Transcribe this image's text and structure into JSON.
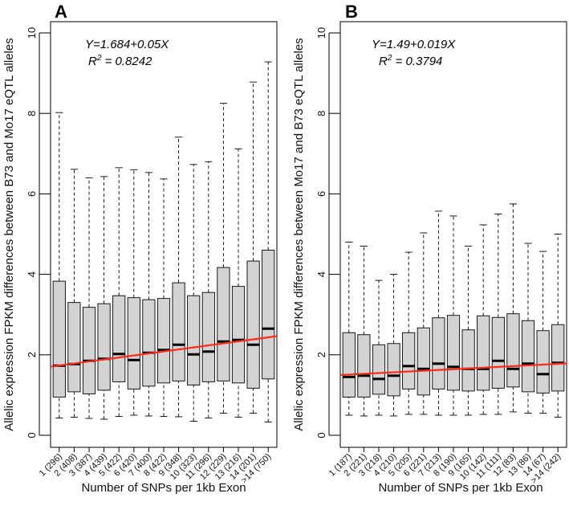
{
  "chart_data": [
    {
      "type": "boxplot",
      "panel_label": "A",
      "ylabel": "Allelic expression FPKM differences between B73 and Mo17 eQTL alleles",
      "xlabel": "Number of SNPs per 1kb Exon",
      "ylim": [
        0,
        10
      ],
      "yticks": [
        "0",
        "2",
        "4",
        "6",
        "8",
        "10"
      ],
      "categories": [
        "1 (296)",
        "2 (408)",
        "3 (387)",
        "4 (439)",
        "5 (422)",
        "6 (420)",
        "7 (400)",
        "8 (422)",
        "9 (348)",
        "10 (323)",
        "11 (296)",
        "12 (229)",
        "13 (216)",
        "14 (201)",
        ">14 (750)"
      ],
      "boxes": [
        {
          "min": 0.43,
          "q1": 0.95,
          "median": 1.73,
          "q3": 3.83,
          "max": 8.02
        },
        {
          "min": 0.45,
          "q1": 1.08,
          "median": 1.77,
          "q3": 3.3,
          "max": 6.61
        },
        {
          "min": 0.42,
          "q1": 1.03,
          "median": 1.85,
          "q3": 3.18,
          "max": 6.4
        },
        {
          "min": 0.4,
          "q1": 1.12,
          "median": 1.9,
          "q3": 3.27,
          "max": 6.43
        },
        {
          "min": 0.47,
          "q1": 1.33,
          "median": 2.02,
          "q3": 3.47,
          "max": 6.65
        },
        {
          "min": 0.5,
          "q1": 1.15,
          "median": 1.87,
          "q3": 3.42,
          "max": 6.6
        },
        {
          "min": 0.48,
          "q1": 1.22,
          "median": 2.05,
          "q3": 3.37,
          "max": 6.53
        },
        {
          "min": 0.47,
          "q1": 1.3,
          "median": 2.12,
          "q3": 3.4,
          "max": 6.37
        },
        {
          "min": 0.46,
          "q1": 1.35,
          "median": 2.25,
          "q3": 3.79,
          "max": 7.41
        },
        {
          "min": 0.35,
          "q1": 1.25,
          "median": 2.01,
          "q3": 3.47,
          "max": 6.73
        },
        {
          "min": 0.43,
          "q1": 1.33,
          "median": 2.08,
          "q3": 3.55,
          "max": 6.8
        },
        {
          "min": 0.55,
          "q1": 1.35,
          "median": 2.33,
          "q3": 4.17,
          "max": 8.25
        },
        {
          "min": 0.45,
          "q1": 1.3,
          "median": 2.37,
          "q3": 3.7,
          "max": 7.12
        },
        {
          "min": 0.55,
          "q1": 1.17,
          "median": 2.25,
          "q3": 4.33,
          "max": 8.78
        },
        {
          "min": 0.33,
          "q1": 1.4,
          "median": 2.65,
          "q3": 4.6,
          "max": 9.28
        }
      ],
      "regression": {
        "intercept": 1.684,
        "slope": 0.05,
        "color": "#ff2a1a"
      },
      "annotation": {
        "equation": "Y=1.684+0.05X",
        "r2_prefix": "R",
        "r2_exp": "2",
        "r2_value": " = 0.8242"
      }
    },
    {
      "type": "boxplot",
      "panel_label": "B",
      "ylabel": "Allelic expression FPKM differences between Mo17 and B73 eQTL alleles",
      "xlabel": "Number of SNPs per 1kb Exon",
      "ylim": [
        0,
        10
      ],
      "yticks": [
        "0",
        "2",
        "4",
        "6",
        "8",
        "10"
      ],
      "categories": [
        "1 (187)",
        "2 (221)",
        "3 (218)",
        "4 (210)",
        "5 (205)",
        "6 (221)",
        "7 (213)",
        "8 (190)",
        "9 (165)",
        "10 (142)",
        "11 (111)",
        "12 (83)",
        "13 (86)",
        "14 (67)",
        ">14 (242)"
      ],
      "boxes": [
        {
          "min": 0.5,
          "q1": 0.95,
          "median": 1.45,
          "q3": 2.55,
          "max": 4.8
        },
        {
          "min": 0.48,
          "q1": 0.95,
          "median": 1.48,
          "q3": 2.5,
          "max": 4.7
        },
        {
          "min": 0.5,
          "q1": 1.02,
          "median": 1.4,
          "q3": 2.25,
          "max": 3.85
        },
        {
          "min": 0.48,
          "q1": 0.98,
          "median": 1.48,
          "q3": 2.28,
          "max": 4.0
        },
        {
          "min": 0.52,
          "q1": 1.15,
          "median": 1.72,
          "q3": 2.55,
          "max": 4.55
        },
        {
          "min": 0.52,
          "q1": 1.0,
          "median": 1.65,
          "q3": 2.67,
          "max": 5.03
        },
        {
          "min": 0.5,
          "q1": 1.15,
          "median": 1.78,
          "q3": 2.92,
          "max": 5.57
        },
        {
          "min": 0.5,
          "q1": 1.12,
          "median": 1.7,
          "q3": 2.98,
          "max": 5.45
        },
        {
          "min": 0.5,
          "q1": 1.1,
          "median": 1.65,
          "q3": 2.62,
          "max": 4.7
        },
        {
          "min": 0.52,
          "q1": 1.12,
          "median": 1.65,
          "q3": 2.97,
          "max": 5.23
        },
        {
          "min": 0.52,
          "q1": 1.17,
          "median": 1.85,
          "q3": 2.93,
          "max": 5.5
        },
        {
          "min": 0.58,
          "q1": 1.2,
          "median": 1.65,
          "q3": 3.02,
          "max": 5.75
        },
        {
          "min": 0.55,
          "q1": 1.08,
          "median": 1.78,
          "q3": 2.85,
          "max": 4.77
        },
        {
          "min": 0.55,
          "q1": 1.05,
          "median": 1.52,
          "q3": 2.6,
          "max": 4.57
        },
        {
          "min": 0.45,
          "q1": 1.1,
          "median": 1.8,
          "q3": 2.75,
          "max": 5.0
        }
      ],
      "regression": {
        "intercept": 1.49,
        "slope": 0.019,
        "color": "#ff2a1a"
      },
      "annotation": {
        "equation": "Y=1.49+0.019X",
        "r2_prefix": "R",
        "r2_exp": "2",
        "r2_value": " = 0.3794"
      }
    }
  ]
}
